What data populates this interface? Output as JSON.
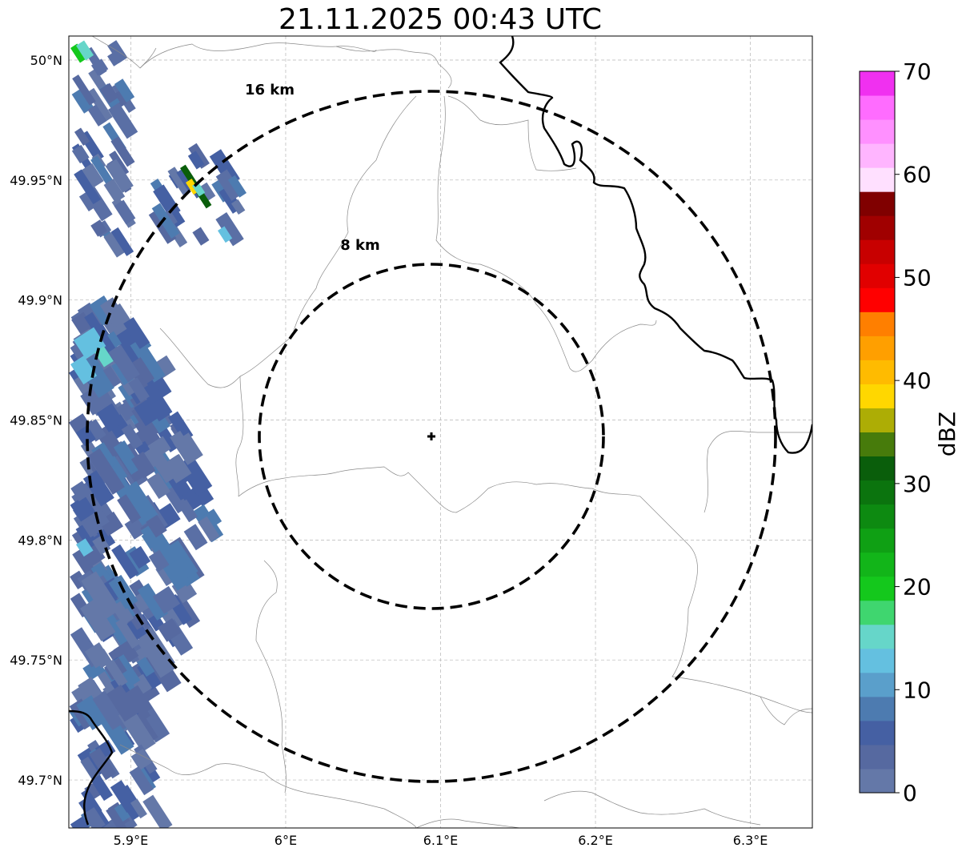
{
  "title": "21.11.2025 00:43 UTC",
  "map": {
    "lon_range": [
      5.86,
      6.34
    ],
    "lat_range": [
      49.68,
      50.01
    ],
    "lat_ticks": [
      {
        "value": 50.0,
        "label": "50°N"
      },
      {
        "value": 49.95,
        "label": "49.95°N"
      },
      {
        "value": 49.9,
        "label": "49.9°N"
      },
      {
        "value": 49.85,
        "label": "49.85°N"
      },
      {
        "value": 49.8,
        "label": "49.8°N"
      },
      {
        "value": 49.75,
        "label": "49.75°N"
      },
      {
        "value": 49.7,
        "label": "49.7°N"
      }
    ],
    "lon_ticks": [
      {
        "value": 5.9,
        "label": "5.9°E"
      },
      {
        "value": 6.0,
        "label": "6°E"
      },
      {
        "value": 6.1,
        "label": "6.1°E"
      },
      {
        "value": 6.2,
        "label": "6.2°E"
      },
      {
        "value": 6.3,
        "label": "6.3°E"
      }
    ],
    "grid": true,
    "radar_site": {
      "lon": 6.095,
      "lat": 49.843
    },
    "range_rings": [
      {
        "label": "8 km",
        "radius_km": 8
      },
      {
        "label": "16 km",
        "radius_km": 16
      }
    ]
  },
  "colorbar": {
    "label": "dBZ",
    "min": 0,
    "max": 70,
    "step": 2.5,
    "tick_labels": [
      "0",
      "10",
      "20",
      "30",
      "40",
      "50",
      "60",
      "70"
    ],
    "colors": [
      "#6478a8",
      "#5669a0",
      "#4560a3",
      "#4d7bb0",
      "#5a9fcb",
      "#64c0e0",
      "#66d6c9",
      "#3fd66f",
      "#14c81c",
      "#12b519",
      "#0fa014",
      "#0d8a11",
      "#0b740e",
      "#0a5e0b",
      "#477b0b",
      "#adad05",
      "#ffd700",
      "#ffbb00",
      "#ff9f00",
      "#ff7f00",
      "#ff0000",
      "#e10000",
      "#c80000",
      "#a00000",
      "#800000",
      "#ffe0ff",
      "#ffb5ff",
      "#ff90ff",
      "#ff6cff",
      "#f030f0"
    ]
  }
}
